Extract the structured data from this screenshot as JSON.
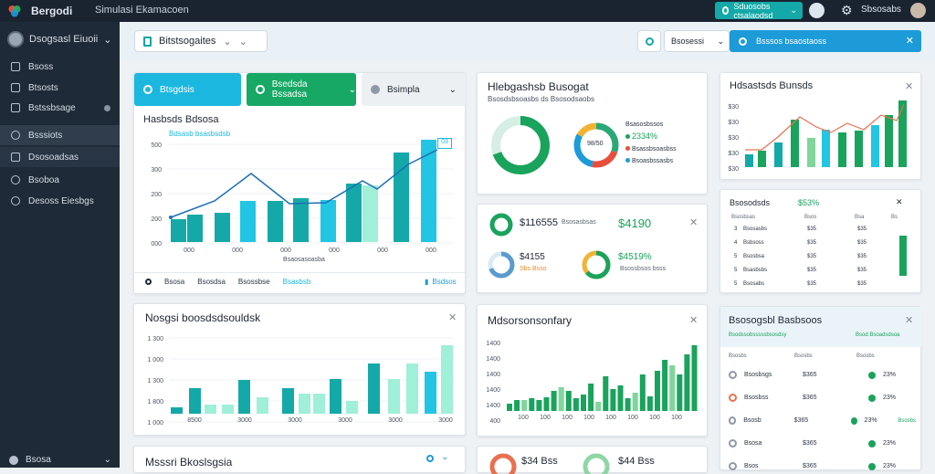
{
  "topbar": {
    "brand": "Bergodi",
    "title": "Simulasi Ekamacoen",
    "action_button": "Sduosobs ctsalaodsd",
    "username": "Sbsosabs"
  },
  "sidebar": {
    "user": "Dsogsasl Eiuoii",
    "items": [
      {
        "label": "Bsoss"
      },
      {
        "label": "Btsosts"
      },
      {
        "label": "Bstssbsage"
      },
      {
        "label": "Bsssiots"
      },
      {
        "label": "Dsosoadsas"
      },
      {
        "label": "Bsoboa"
      },
      {
        "label": "Desoss Eiesbgs"
      }
    ],
    "bottom": "Bsosa"
  },
  "header": {
    "select": "Bitstsogaites",
    "mini_select": "Bsosessi",
    "search_placeholder": "Bsssos bsaostaoss"
  },
  "main_chart": {
    "tabs": [
      "Btsgdsis",
      "Bsedsda  Bssadsa",
      "Bsimpla"
    ],
    "title": "Hasbsds Bdsosa",
    "legend": "Bdsasb bsasbsdsb",
    "y_ticks": [
      "500",
      "300",
      "200",
      "200",
      "000"
    ],
    "x_ticks": [
      "000",
      "000",
      "000",
      "000",
      "000",
      "000"
    ],
    "x_label": "Bsaosasoasba",
    "tooltip": "03",
    "footer_items": [
      "Bsosa",
      "Bsosdsa",
      "Bsossbse",
      "Bsasbsb"
    ],
    "footer_right": "Bsdsos"
  },
  "bottom_chart": {
    "title": "Nosgsi boosdsdsouldsk",
    "y_ticks": [
      "1 300",
      "1 000",
      "1 300",
      "1 800",
      "1 000"
    ],
    "x_ticks": [
      "8500",
      "3000",
      "3000",
      "3000",
      "3000",
      "3000"
    ]
  },
  "mini_card": {
    "title": "Msssri Bkoslsgsia"
  },
  "budget_card": {
    "title": "Hlebgashsb Busogat",
    "subtitle": "Bsosdsbsoasbs ds Bsosodsaobs",
    "donut_center": "98/50",
    "legend": [
      "Bsasosbssos",
      "2334%",
      "Bsassbsoasbss",
      "Bsoasbssasbs"
    ]
  },
  "kpi_card": {
    "label1": "$116555",
    "sub1": "Bsosasbsas",
    "value1": "$4190",
    "label2": "$4155",
    "sub2": "Sbs  Bsso",
    "value2": "$4519%",
    "sub3": "Bsossbsos  bsss"
  },
  "monetary_card": {
    "title": "Mdsorsonsonfary",
    "y_ticks": [
      "1400",
      "1400",
      "1400",
      "1400",
      "1400",
      "400"
    ],
    "x_ticks": [
      "100",
      "100",
      "100",
      "100",
      "100",
      "100",
      "100",
      "100"
    ]
  },
  "top_right_card": {
    "title": "Hdsastsds Bunsds",
    "y_ticks": [
      "$30",
      "$30",
      "$30",
      "$30",
      "$30"
    ]
  },
  "table_card": {
    "title": "Bsosodsds",
    "highlight": "$53%",
    "header": [
      "Bsosbsas",
      "Bsos",
      "Bsa",
      "Bs"
    ],
    "rows": [
      {
        "n": "3",
        "name": "Bsosasbs",
        "a": "$35",
        "b": "$35",
        "c": "$3"
      },
      {
        "n": "4",
        "name": "Bsbsoss",
        "a": "$35",
        "b": "$35",
        "c": "$3"
      },
      {
        "n": "5",
        "name": "Bsosbsa",
        "a": "$35",
        "b": "$35",
        "c": "$3"
      },
      {
        "n": "5",
        "name": "Bsasbsbs",
        "a": "$35",
        "b": "$35",
        "c": "$3"
      },
      {
        "n": "5",
        "name": "Bsosabs",
        "a": "$35",
        "b": "$35",
        "c": "$3"
      }
    ]
  },
  "right_list": {
    "title": "Bsosogsbl Basbsoos",
    "subtitle": "Bsodssobsssssbsosdsy",
    "subtitle_right": "Bsod  Bsoadsdsoa",
    "header": [
      "Bsosbs",
      "Bsosbs",
      "Bsosbs"
    ],
    "rows": [
      {
        "name": "Bsosbsgs",
        "amount": "$365",
        "pct": "23%",
        "tag": ""
      },
      {
        "name": "Bsosbss",
        "amount": "$365",
        "pct": "23%",
        "tag": ""
      },
      {
        "name": "Bsosb",
        "amount": "$365",
        "pct": "23%",
        "tag": "Bsosbs"
      },
      {
        "name": "Bsosa",
        "amount": "$365",
        "pct": "23%",
        "tag": ""
      },
      {
        "name": "Bsos",
        "amount": "$365",
        "pct": "23%",
        "tag": ""
      }
    ]
  },
  "bottom_kpis": [
    "$34 Bss",
    "$44 Bss"
  ],
  "colors": {
    "teal": "#14a9a8",
    "green": "#19a35c",
    "cyan": "#22c5e3",
    "blue": "#1d9bd9",
    "dark": "#1e2a37"
  }
}
